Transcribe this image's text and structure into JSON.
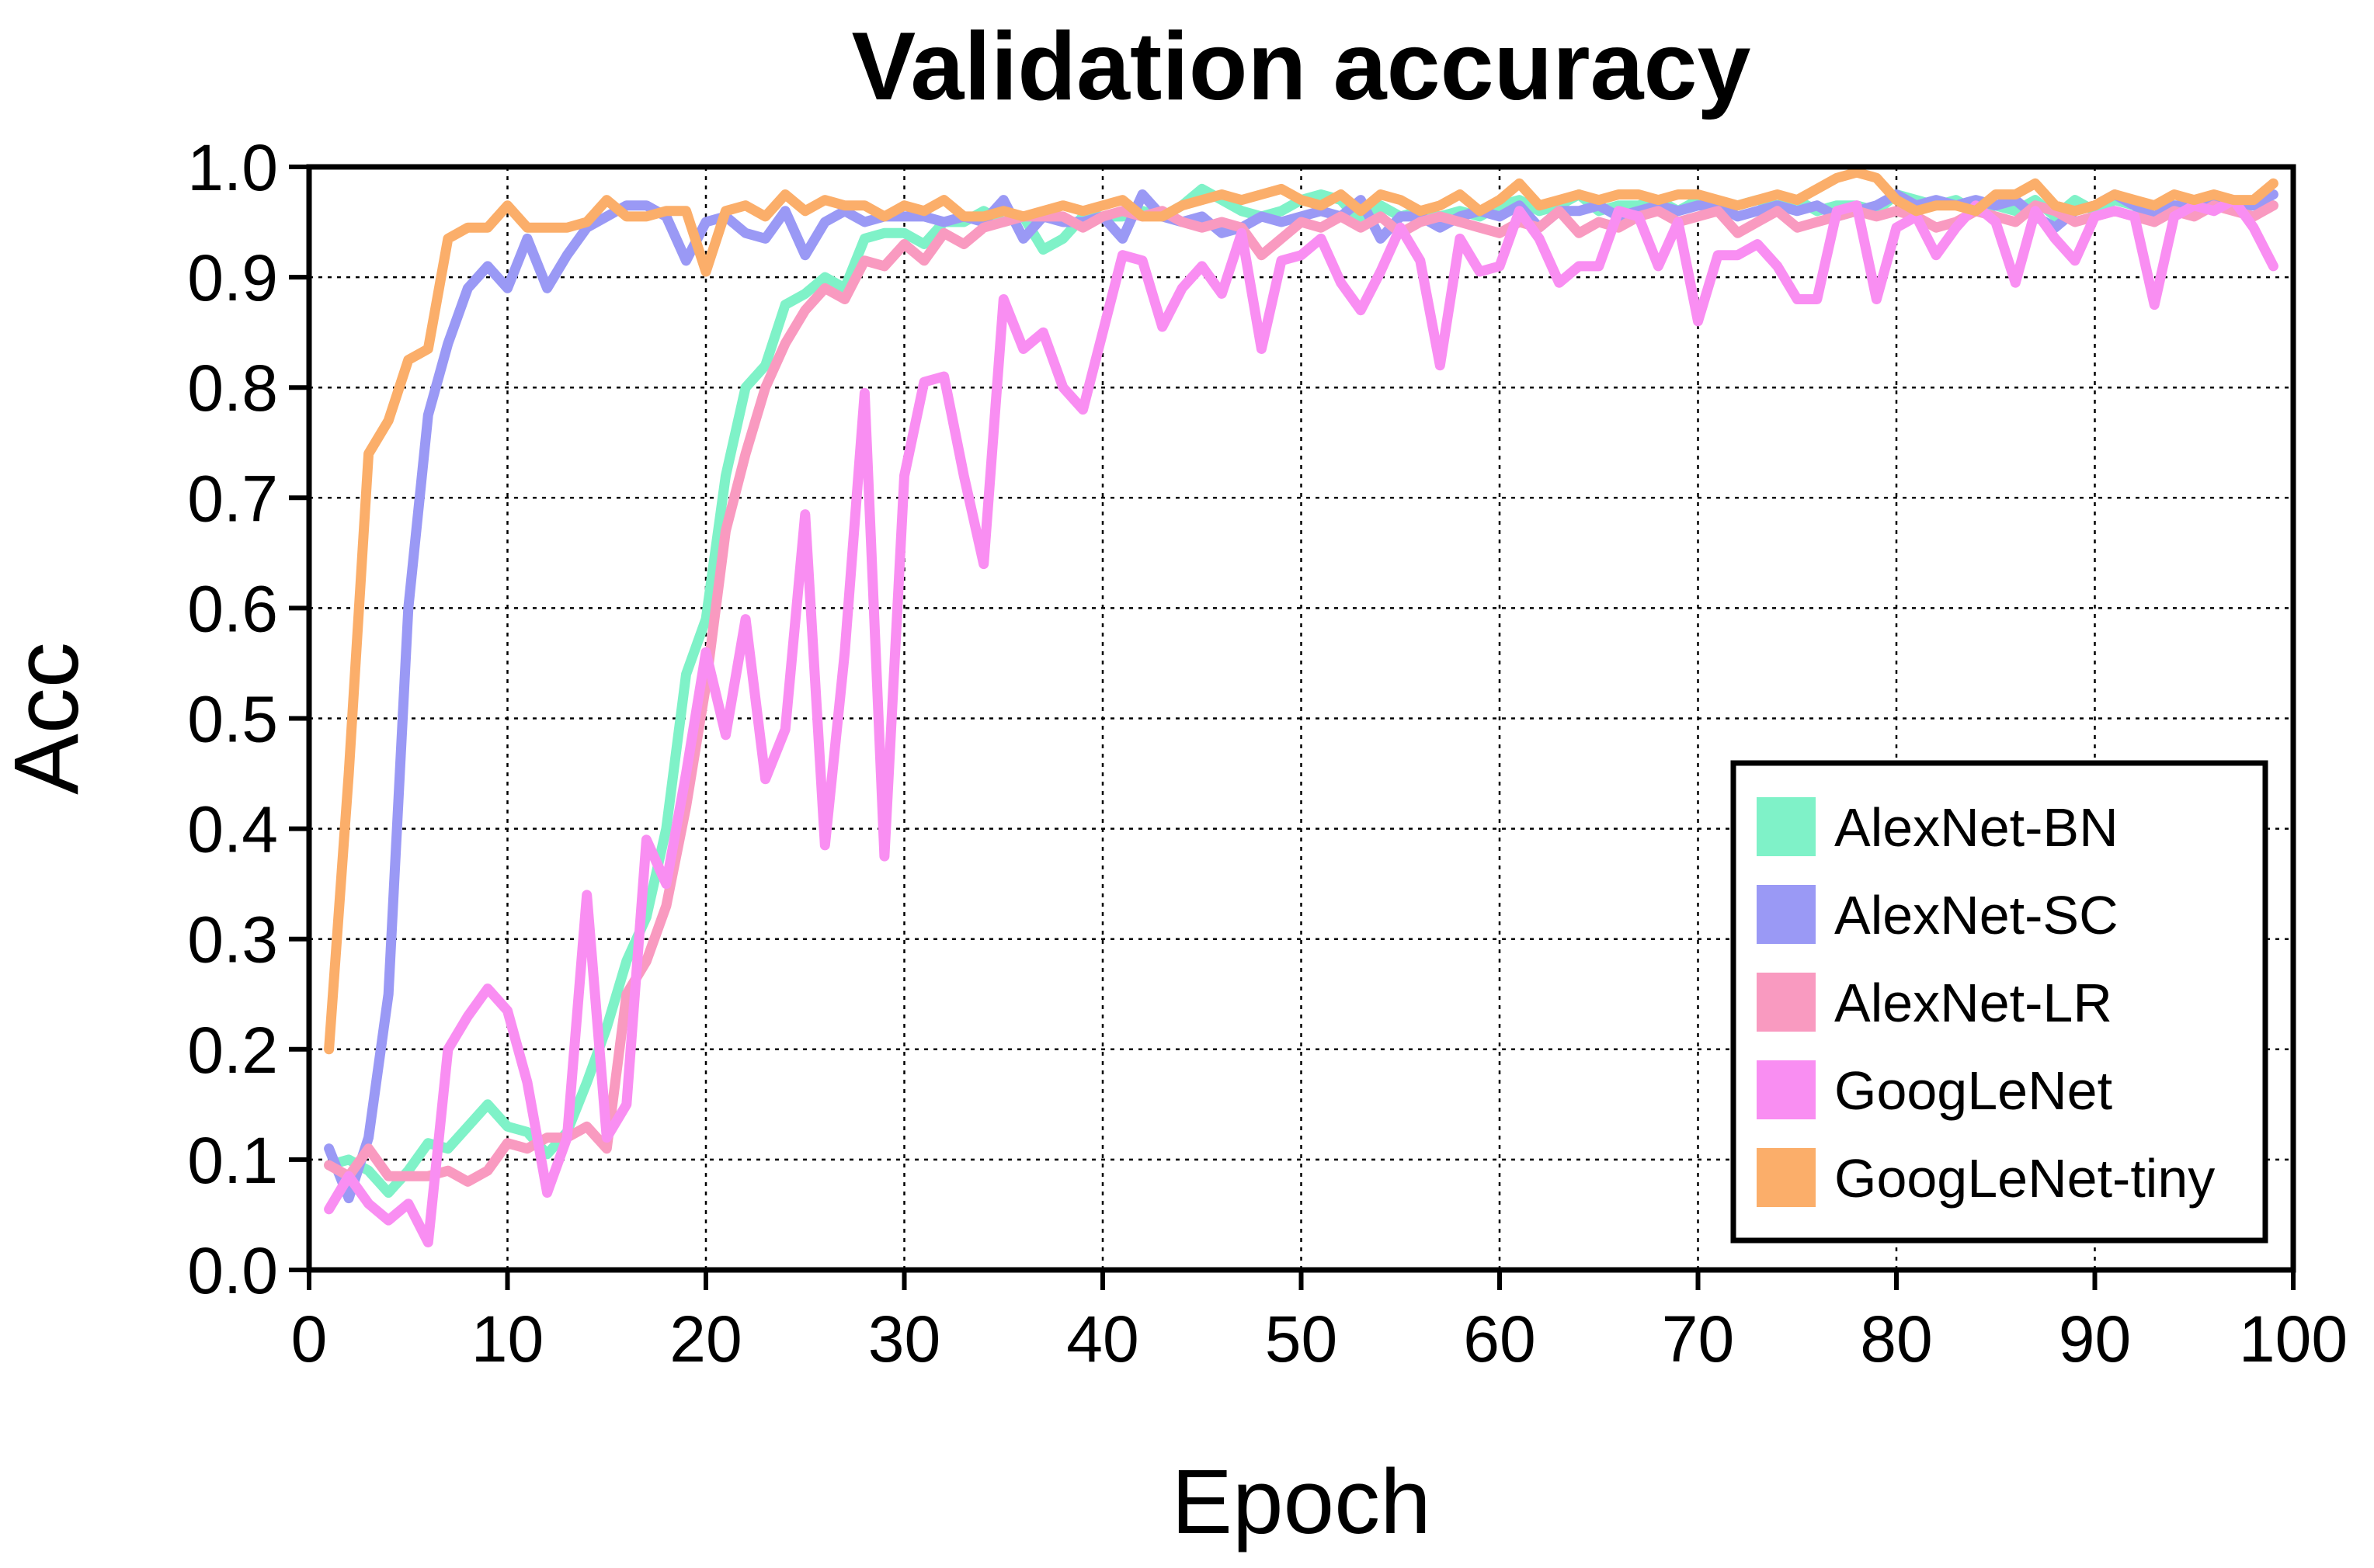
{
  "chart_data": {
    "type": "line",
    "title": "Validation accuracy",
    "xlabel": "Epoch",
    "ylabel": "Acc",
    "xlim": [
      0,
      100
    ],
    "ylim": [
      0,
      1.0
    ],
    "x_ticks": [
      "0",
      "10",
      "20",
      "30",
      "40",
      "50",
      "60",
      "70",
      "80",
      "90",
      "100"
    ],
    "y_ticks": [
      "0.0",
      "0.1",
      "0.2",
      "0.3",
      "0.4",
      "0.5",
      "0.6",
      "0.7",
      "0.8",
      "0.9",
      "1.0"
    ],
    "grid": true,
    "legend_position": "bottom-right",
    "x_start": 1,
    "series": [
      {
        "name": "AlexNet-BN",
        "color": "#7ff2c8",
        "values": [
          0.095,
          0.1,
          0.09,
          0.07,
          0.09,
          0.115,
          0.11,
          0.13,
          0.15,
          0.13,
          0.125,
          0.105,
          0.125,
          0.17,
          0.22,
          0.28,
          0.32,
          0.4,
          0.54,
          0.59,
          0.72,
          0.8,
          0.82,
          0.875,
          0.885,
          0.9,
          0.89,
          0.935,
          0.94,
          0.94,
          0.93,
          0.95,
          0.95,
          0.96,
          0.95,
          0.955,
          0.925,
          0.935,
          0.955,
          0.955,
          0.955,
          0.96,
          0.955,
          0.965,
          0.98,
          0.97,
          0.96,
          0.955,
          0.96,
          0.97,
          0.975,
          0.97,
          0.95,
          0.965,
          0.955,
          0.96,
          0.955,
          0.96,
          0.955,
          0.965,
          0.97,
          0.96,
          0.965,
          0.975,
          0.96,
          0.965,
          0.965,
          0.97,
          0.96,
          0.97,
          0.965,
          0.965,
          0.97,
          0.965,
          0.97,
          0.96,
          0.965,
          0.965,
          0.96,
          0.975,
          0.97,
          0.965,
          0.97,
          0.96,
          0.965,
          0.96,
          0.97,
          0.955,
          0.97,
          0.96,
          0.97,
          0.965,
          0.95,
          0.965,
          0.96,
          0.97,
          0.965,
          0.97,
          0.965
        ]
      },
      {
        "name": "AlexNet-SC",
        "color": "#9a99f5",
        "values": [
          0.11,
          0.065,
          0.12,
          0.25,
          0.6,
          0.775,
          0.84,
          0.89,
          0.91,
          0.89,
          0.935,
          0.89,
          0.92,
          0.945,
          0.955,
          0.965,
          0.965,
          0.955,
          0.915,
          0.95,
          0.955,
          0.94,
          0.935,
          0.96,
          0.92,
          0.95,
          0.96,
          0.95,
          0.955,
          0.955,
          0.955,
          0.95,
          0.955,
          0.95,
          0.97,
          0.935,
          0.955,
          0.95,
          0.95,
          0.955,
          0.935,
          0.975,
          0.955,
          0.95,
          0.955,
          0.94,
          0.945,
          0.955,
          0.95,
          0.955,
          0.96,
          0.955,
          0.97,
          0.935,
          0.955,
          0.955,
          0.945,
          0.955,
          0.96,
          0.955,
          0.965,
          0.945,
          0.96,
          0.96,
          0.965,
          0.955,
          0.96,
          0.965,
          0.96,
          0.965,
          0.965,
          0.955,
          0.96,
          0.965,
          0.96,
          0.965,
          0.955,
          0.96,
          0.965,
          0.975,
          0.965,
          0.97,
          0.965,
          0.97,
          0.965,
          0.97,
          0.955,
          0.945,
          0.96,
          0.965,
          0.975,
          0.965,
          0.955,
          0.965,
          0.965,
          0.97,
          0.965,
          0.965,
          0.975
        ]
      },
      {
        "name": "AlexNet-LR",
        "color": "#f99ac0",
        "values": [
          0.095,
          0.085,
          0.11,
          0.085,
          0.085,
          0.085,
          0.09,
          0.08,
          0.09,
          0.115,
          0.11,
          0.12,
          0.12,
          0.13,
          0.11,
          0.25,
          0.28,
          0.33,
          0.42,
          0.53,
          0.67,
          0.74,
          0.8,
          0.84,
          0.87,
          0.89,
          0.88,
          0.915,
          0.91,
          0.93,
          0.915,
          0.94,
          0.93,
          0.945,
          0.95,
          0.955,
          0.955,
          0.955,
          0.945,
          0.955,
          0.96,
          0.955,
          0.96,
          0.95,
          0.945,
          0.95,
          0.945,
          0.92,
          0.935,
          0.95,
          0.945,
          0.955,
          0.945,
          0.955,
          0.94,
          0.95,
          0.955,
          0.95,
          0.945,
          0.94,
          0.95,
          0.945,
          0.96,
          0.94,
          0.95,
          0.945,
          0.955,
          0.96,
          0.95,
          0.955,
          0.96,
          0.94,
          0.95,
          0.96,
          0.945,
          0.95,
          0.955,
          0.96,
          0.955,
          0.96,
          0.955,
          0.945,
          0.95,
          0.96,
          0.955,
          0.95,
          0.965,
          0.96,
          0.95,
          0.955,
          0.96,
          0.955,
          0.95,
          0.96,
          0.955,
          0.965,
          0.96,
          0.955,
          0.965
        ]
      },
      {
        "name": "GoogLeNet",
        "color": "#f98ef2",
        "values": [
          0.055,
          0.085,
          0.06,
          0.045,
          0.06,
          0.025,
          0.2,
          0.23,
          0.255,
          0.235,
          0.17,
          0.07,
          0.12,
          0.34,
          0.12,
          0.15,
          0.39,
          0.35,
          0.45,
          0.56,
          0.485,
          0.59,
          0.445,
          0.49,
          0.685,
          0.385,
          0.56,
          0.795,
          0.375,
          0.72,
          0.805,
          0.81,
          0.72,
          0.64,
          0.88,
          0.835,
          0.85,
          0.8,
          0.78,
          0.85,
          0.92,
          0.915,
          0.855,
          0.89,
          0.91,
          0.885,
          0.94,
          0.835,
          0.915,
          0.92,
          0.935,
          0.895,
          0.87,
          0.905,
          0.945,
          0.915,
          0.82,
          0.935,
          0.905,
          0.91,
          0.96,
          0.935,
          0.895,
          0.91,
          0.91,
          0.96,
          0.955,
          0.91,
          0.95,
          0.86,
          0.92,
          0.92,
          0.93,
          0.91,
          0.88,
          0.88,
          0.96,
          0.965,
          0.88,
          0.945,
          0.955,
          0.92,
          0.945,
          0.965,
          0.95,
          0.895,
          0.96,
          0.935,
          0.915,
          0.955,
          0.96,
          0.955,
          0.875,
          0.955,
          0.965,
          0.96,
          0.97,
          0.945,
          0.91
        ]
      },
      {
        "name": "GoogLeNet-tiny",
        "color": "#fbae6a",
        "values": [
          0.2,
          0.45,
          0.74,
          0.77,
          0.825,
          0.835,
          0.935,
          0.945,
          0.945,
          0.965,
          0.945,
          0.945,
          0.945,
          0.95,
          0.97,
          0.955,
          0.955,
          0.96,
          0.96,
          0.905,
          0.96,
          0.965,
          0.955,
          0.975,
          0.96,
          0.97,
          0.965,
          0.965,
          0.955,
          0.965,
          0.96,
          0.97,
          0.955,
          0.955,
          0.96,
          0.955,
          0.96,
          0.965,
          0.96,
          0.965,
          0.97,
          0.955,
          0.955,
          0.965,
          0.97,
          0.975,
          0.97,
          0.975,
          0.98,
          0.97,
          0.965,
          0.975,
          0.96,
          0.975,
          0.97,
          0.96,
          0.965,
          0.975,
          0.96,
          0.97,
          0.985,
          0.965,
          0.97,
          0.975,
          0.97,
          0.975,
          0.975,
          0.97,
          0.975,
          0.975,
          0.97,
          0.965,
          0.97,
          0.975,
          0.97,
          0.98,
          0.99,
          0.995,
          0.99,
          0.97,
          0.96,
          0.965,
          0.965,
          0.96,
          0.975,
          0.975,
          0.985,
          0.965,
          0.96,
          0.965,
          0.975,
          0.97,
          0.965,
          0.975,
          0.97,
          0.975,
          0.97,
          0.97,
          0.985
        ]
      }
    ]
  }
}
